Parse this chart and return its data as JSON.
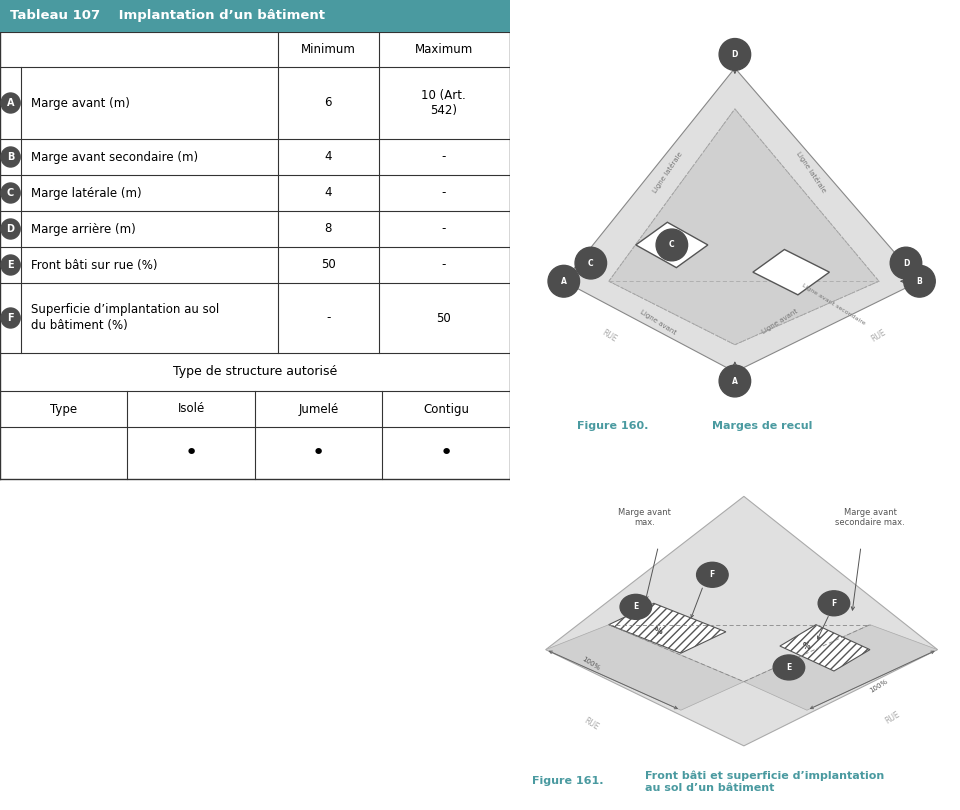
{
  "title": "Tableau 107    Implantation d’un bâtiment",
  "header_bg": "#4a9aa0",
  "header_text_color": "#ffffff",
  "table_rows": [
    {
      "label_icon": "A",
      "label": "Marge avant (m)",
      "min": "6",
      "max": "10 (Art.\n542)"
    },
    {
      "label_icon": "B",
      "label": "Marge avant secondaire (m)",
      "min": "4",
      "max": "-"
    },
    {
      "label_icon": "C",
      "label": "Marge latérale (m)",
      "min": "4",
      "max": "-"
    },
    {
      "label_icon": "D",
      "label": "Marge arrière (m)",
      "min": "8",
      "max": "-"
    },
    {
      "label_icon": "E",
      "label": "Front bâti sur rue (%)",
      "min": "50",
      "max": "-"
    },
    {
      "label_icon": "F",
      "label": "Superficie d’implantation au sol\ndu bâtiment (%)",
      "min": "-",
      "max": "50"
    }
  ],
  "col_headers": [
    "",
    "",
    "Minimum",
    "Maximum"
  ],
  "type_structure_label": "Type de structure autorisé",
  "type_row_headers": [
    "Type",
    "Isolé",
    "Jumelé",
    "Contigu"
  ],
  "type_row_values": [
    "",
    "•",
    "•",
    "•"
  ],
  "fig160_label": "Figure 160.",
  "fig160_title": "Marges de recul",
  "fig161_label": "Figure 161.",
  "fig161_title": "Front bâti et superficie d’implantation\nau sol d’un bâtiment",
  "teal_color": "#4a9aa0",
  "icon_bg": "#4d4d4d",
  "icon_text": "#ffffff"
}
